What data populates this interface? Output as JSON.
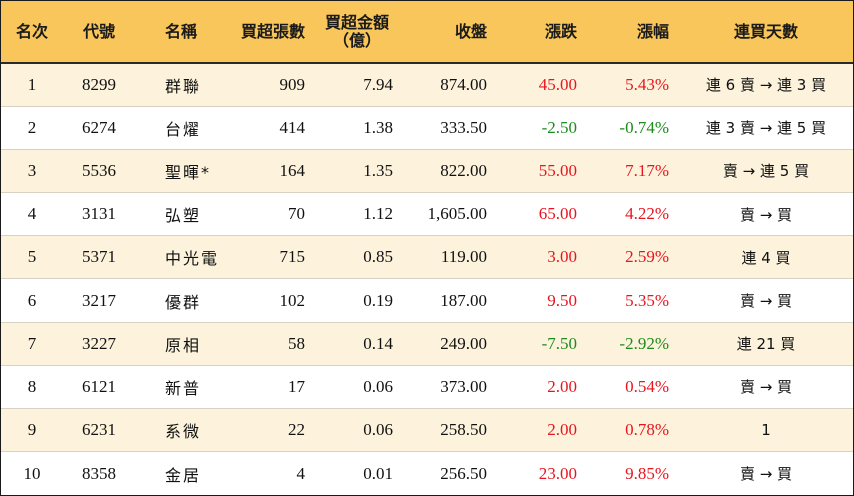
{
  "headers": {
    "rank": "名次",
    "code": "代號",
    "name": "名稱",
    "net_lots": "買超張數",
    "net_amount_line1": "買超金額",
    "net_amount_line2": "（億）",
    "close": "收盤",
    "change": "漲跌",
    "change_pct": "漲幅",
    "buy_days": "連買天數"
  },
  "rows": [
    {
      "rank": "1",
      "code": "8299",
      "name": "群聯",
      "net_lots": "909",
      "net_amount": "7.94",
      "close": "874.00",
      "change": "45.00",
      "change_pct": "5.43%",
      "buy_days": "連 6 賣 → 連 3 買",
      "dir": "up"
    },
    {
      "rank": "2",
      "code": "6274",
      "name": "台燿",
      "net_lots": "414",
      "net_amount": "1.38",
      "close": "333.50",
      "change": "-2.50",
      "change_pct": "-0.74%",
      "buy_days": "連 3 賣 → 連 5 買",
      "dir": "down"
    },
    {
      "rank": "3",
      "code": "5536",
      "name": "聖暉*",
      "net_lots": "164",
      "net_amount": "1.35",
      "close": "822.00",
      "change": "55.00",
      "change_pct": "7.17%",
      "buy_days": "賣 → 連 5 買",
      "dir": "up"
    },
    {
      "rank": "4",
      "code": "3131",
      "name": "弘塑",
      "net_lots": "70",
      "net_amount": "1.12",
      "close": "1,605.00",
      "change": "65.00",
      "change_pct": "4.22%",
      "buy_days": "賣 → 買",
      "dir": "up"
    },
    {
      "rank": "5",
      "code": "5371",
      "name": "中光電",
      "net_lots": "715",
      "net_amount": "0.85",
      "close": "119.00",
      "change": "3.00",
      "change_pct": "2.59%",
      "buy_days": "連 4 買",
      "dir": "up"
    },
    {
      "rank": "6",
      "code": "3217",
      "name": "優群",
      "net_lots": "102",
      "net_amount": "0.19",
      "close": "187.00",
      "change": "9.50",
      "change_pct": "5.35%",
      "buy_days": "賣 → 買",
      "dir": "up"
    },
    {
      "rank": "7",
      "code": "3227",
      "name": "原相",
      "net_lots": "58",
      "net_amount": "0.14",
      "close": "249.00",
      "change": "-7.50",
      "change_pct": "-2.92%",
      "buy_days": "連 21 買",
      "dir": "down"
    },
    {
      "rank": "8",
      "code": "6121",
      "name": "新普",
      "net_lots": "17",
      "net_amount": "0.06",
      "close": "373.00",
      "change": "2.00",
      "change_pct": "0.54%",
      "buy_days": "賣 → 買",
      "dir": "up"
    },
    {
      "rank": "9",
      "code": "6231",
      "name": "系微",
      "net_lots": "22",
      "net_amount": "0.06",
      "close": "258.50",
      "change": "2.00",
      "change_pct": "0.78%",
      "buy_days": "1",
      "dir": "up"
    },
    {
      "rank": "10",
      "code": "8358",
      "name": "金居",
      "net_lots": "4",
      "net_amount": "0.01",
      "close": "256.50",
      "change": "23.00",
      "change_pct": "9.85%",
      "buy_days": "賣 → 買",
      "dir": "up"
    }
  ],
  "colors": {
    "header_bg": "#f8c65a",
    "odd_row_bg": "#fdf3dc",
    "up": "#e8141e",
    "down": "#1d8a1d"
  }
}
